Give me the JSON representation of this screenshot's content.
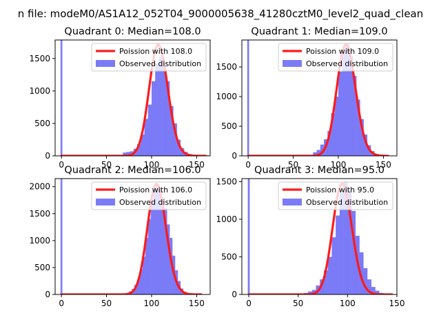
{
  "figure": {
    "suptitle": "n file: modeM0/AS1A12_052T04_9000005638_41280cztM0_level2_quad_clean"
  },
  "chart_data": [
    {
      "type": "bar",
      "title": "Quadrant 0: Median=108.0",
      "xlabel": "",
      "ylabel": "",
      "xlim": [
        -7,
        165
      ],
      "ylim": [
        0,
        1785
      ],
      "xticks": [
        "0",
        "50",
        "100",
        "150"
      ],
      "xtick_values": [
        0,
        50,
        100,
        150
      ],
      "yticks": [
        "0",
        "500",
        "1000",
        "1500"
      ],
      "ytick_values": [
        0,
        500,
        1000,
        1500
      ],
      "legend": {
        "position": "top-right",
        "entries": [
          "Poission with 108.0",
          "Observed distribution"
        ]
      },
      "spike": {
        "x": 0,
        "value": 1785
      },
      "hist": {
        "bin_width": 4,
        "x": [
          68,
          72,
          76,
          80,
          84,
          88,
          92,
          96,
          100,
          104,
          108,
          112,
          116,
          120,
          124,
          128,
          132,
          136,
          140,
          144
        ],
        "values": [
          50,
          60,
          70,
          110,
          180,
          330,
          570,
          790,
          1150,
          1420,
          1520,
          1400,
          1150,
          770,
          500,
          250,
          120,
          60,
          30,
          10
        ]
      },
      "poisson": {
        "mean": 108.0,
        "peak": 1710,
        "x_range": [
          0,
          160
        ]
      },
      "colors": {
        "hist": "#7b7bf7",
        "poisson": "#ff1a1a"
      }
    },
    {
      "type": "bar",
      "title": "Quadrant 1: Median=109.0",
      "xlabel": "",
      "ylabel": "",
      "xlim": [
        -7,
        165
      ],
      "ylim": [
        0,
        1955
      ],
      "xticks": [
        "0",
        "50",
        "100",
        "150"
      ],
      "xtick_values": [
        0,
        50,
        100,
        150
      ],
      "yticks": [
        "0",
        "500",
        "1000",
        "1500"
      ],
      "ytick_values": [
        0,
        500,
        1000,
        1500
      ],
      "legend": {
        "position": "top-right",
        "entries": [
          "Poission with 109.0",
          "Observed distribution"
        ]
      },
      "spike": {
        "x": 0,
        "value": 1955
      },
      "hist": {
        "bin_width": 4,
        "x": [
          72,
          76,
          80,
          84,
          88,
          92,
          96,
          100,
          104,
          108,
          112,
          116,
          120,
          124,
          128,
          132,
          136,
          140,
          144
        ],
        "values": [
          60,
          100,
          190,
          280,
          420,
          720,
          1000,
          1420,
          1750,
          1890,
          1680,
          1350,
          950,
          620,
          360,
          180,
          80,
          30,
          10
        ]
      },
      "poisson": {
        "mean": 109.0,
        "peak": 1880,
        "x_range": [
          0,
          155
        ]
      },
      "colors": {
        "hist": "#7b7bf7",
        "poisson": "#ff1a1a"
      }
    },
    {
      "type": "bar",
      "title": "Quadrant 2: Median=106.0",
      "xlabel": "",
      "ylabel": "",
      "xlim": [
        -7,
        165
      ],
      "ylim": [
        0,
        2150
      ],
      "xticks": [
        "0",
        "50",
        "100",
        "150"
      ],
      "xtick_values": [
        0,
        50,
        100,
        150
      ],
      "yticks": [
        "0",
        "500",
        "1000",
        "1500",
        "2000"
      ],
      "ytick_values": [
        0,
        500,
        1000,
        1500,
        2000
      ],
      "legend": {
        "position": "top-right",
        "entries": [
          "Poission with 106.0",
          "Observed distribution"
        ]
      },
      "spike": {
        "x": 0,
        "value": 2150
      },
      "hist": {
        "bin_width": 3,
        "x": [
          72,
          75,
          78,
          81,
          84,
          87,
          90,
          93,
          96,
          99,
          102,
          105,
          108,
          111,
          114,
          117,
          120,
          123,
          126,
          129,
          132,
          135,
          138
        ],
        "values": [
          30,
          60,
          100,
          180,
          280,
          470,
          700,
          1050,
          1400,
          1750,
          1950,
          2050,
          1950,
          1800,
          1600,
          1300,
          1050,
          720,
          450,
          250,
          110,
          50,
          20
        ]
      },
      "poisson": {
        "mean": 106.0,
        "peak": 2050,
        "x_range": [
          0,
          155
        ]
      },
      "colors": {
        "hist": "#7b7bf7",
        "poisson": "#ff1a1a"
      }
    },
    {
      "type": "bar",
      "title": "Quadrant 3: Median=95.0",
      "xlabel": "",
      "ylabel": "",
      "xlim": [
        -7,
        150
      ],
      "ylim": [
        0,
        1540
      ],
      "xticks": [
        "0",
        "50",
        "100",
        "150"
      ],
      "xtick_values": [
        0,
        50,
        100,
        150
      ],
      "yticks": [
        "0",
        "500",
        "1000",
        "1500"
      ],
      "ytick_values": [
        0,
        500,
        1000,
        1500
      ],
      "legend": {
        "position": "top-right",
        "entries": [
          "Poission with 95.0",
          "Observed distribution"
        ]
      },
      "spike": {
        "x": 0,
        "value": 1540
      },
      "hist": {
        "bin_width": 4,
        "x": [
          56,
          60,
          64,
          68,
          72,
          76,
          80,
          84,
          88,
          92,
          96,
          100,
          104,
          108,
          112,
          116,
          120,
          124,
          128,
          132,
          136
        ],
        "values": [
          20,
          40,
          60,
          120,
          200,
          320,
          500,
          760,
          1050,
          1350,
          1500,
          1380,
          1110,
          780,
          560,
          350,
          200,
          100,
          50,
          20,
          10
        ]
      },
      "poisson": {
        "mean": 95.0,
        "peak": 1470,
        "x_range": [
          0,
          145
        ]
      },
      "colors": {
        "hist": "#7b7bf7",
        "poisson": "#ff1a1a"
      }
    }
  ]
}
